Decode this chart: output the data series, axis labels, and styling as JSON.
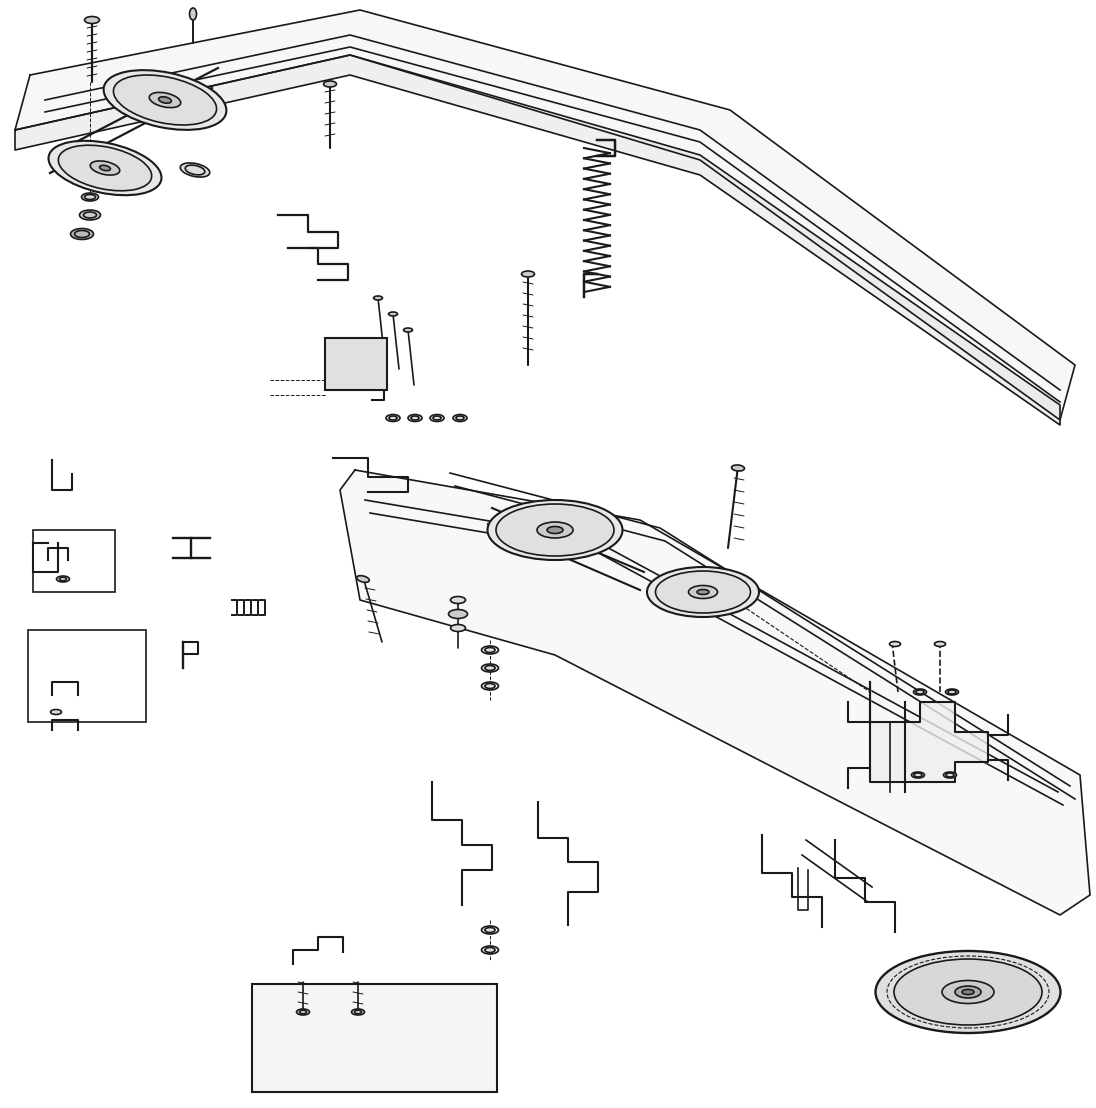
{
  "background_color": "#ffffff",
  "line_color": "#1a1a1a",
  "line_width": 1.2,
  "fig_width": 10.96,
  "fig_height": 11.08
}
